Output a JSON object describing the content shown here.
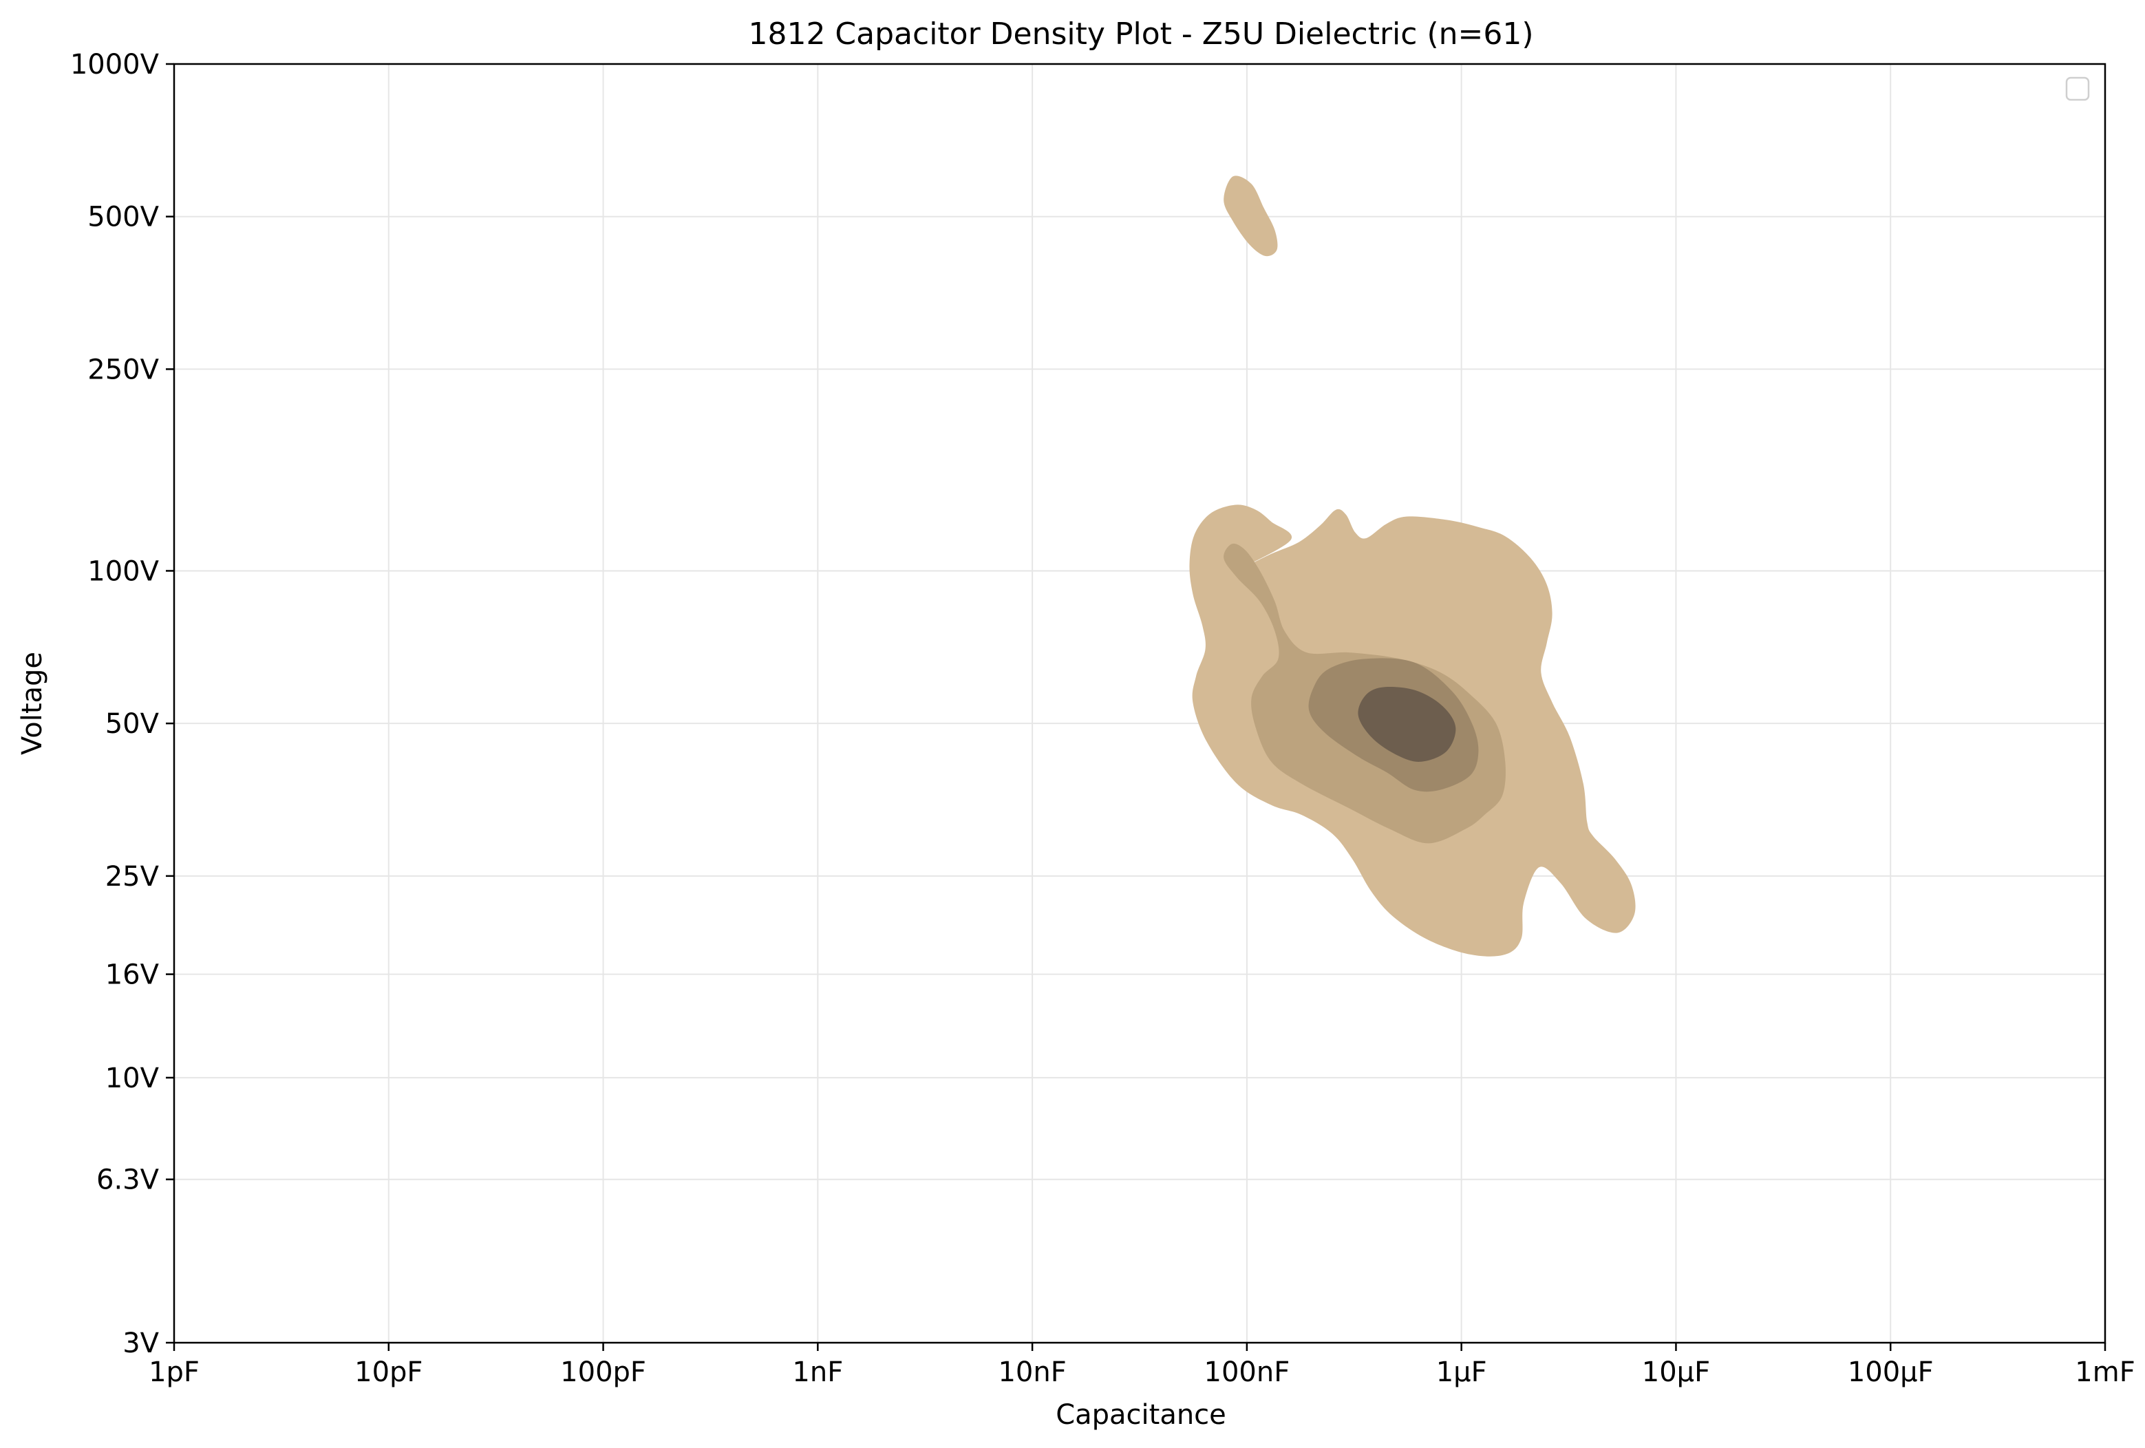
{
  "chart_data": {
    "type": "density",
    "title": "1812 Capacitor Density Plot - Z5U Dielectric (n=61)",
    "xlabel": "Capacitance",
    "ylabel": "Voltage",
    "x_scale": "log",
    "y_scale": "log",
    "x_unit": "F",
    "y_unit": "V",
    "xlim": [
      1e-12,
      0.001
    ],
    "ylim": [
      3,
      1000
    ],
    "x_ticks": [
      {
        "value": 1e-12,
        "label": "1pF"
      },
      {
        "value": 1e-11,
        "label": "10pF"
      },
      {
        "value": 1e-10,
        "label": "100pF"
      },
      {
        "value": 1e-09,
        "label": "1nF"
      },
      {
        "value": 1e-08,
        "label": "10nF"
      },
      {
        "value": 1e-07,
        "label": "100nF"
      },
      {
        "value": 1e-06,
        "label": "1µF"
      },
      {
        "value": 1e-05,
        "label": "10µF"
      },
      {
        "value": 0.0001,
        "label": "100µF"
      },
      {
        "value": 0.001,
        "label": "1mF"
      }
    ],
    "y_ticks": [
      {
        "value": 3,
        "label": "3V"
      },
      {
        "value": 6.3,
        "label": "6.3V"
      },
      {
        "value": 10,
        "label": "10V"
      },
      {
        "value": 16,
        "label": "16V"
      },
      {
        "value": 25,
        "label": "25V"
      },
      {
        "value": 50,
        "label": "50V"
      },
      {
        "value": 100,
        "label": "100V"
      },
      {
        "value": 250,
        "label": "250V"
      },
      {
        "value": 500,
        "label": "500V"
      },
      {
        "value": 1000,
        "label": "1000V"
      }
    ],
    "grid": true,
    "legend": {
      "position": "upper-right",
      "entries": []
    },
    "density_levels": [
      {
        "level": 1,
        "color": "#d4ba95",
        "regions": [
          [
            [
              8.9e-08,
              100
            ],
            [
              1.3e-07,
              108
            ],
            [
              1.75e-07,
              114
            ],
            [
              2.2e-07,
              123
            ],
            [
              2.6e-07,
              132
            ],
            [
              2.9e-07,
              129
            ],
            [
              3.2e-07,
              119
            ],
            [
              3.6e-07,
              116
            ],
            [
              4.5e-07,
              124
            ],
            [
              5.6e-07,
              128
            ],
            [
              8.6e-07,
              126
            ],
            [
              1.2e-06,
              122
            ],
            [
              1.6e-06,
              117
            ],
            [
              2.1e-06,
              106
            ],
            [
              2.5e-06,
              94
            ],
            [
              2.65e-06,
              82
            ],
            [
              2.5e-06,
              72
            ],
            [
              2.35e-06,
              63
            ],
            [
              2.65e-06,
              55
            ],
            [
              3.2e-06,
              47
            ],
            [
              3.7e-06,
              38
            ],
            [
              3.85e-06,
              32
            ],
            [
              4.1e-06,
              30
            ],
            [
              5.2e-06,
              27
            ],
            [
              6.2e-06,
              24
            ],
            [
              6.4e-06,
              21
            ],
            [
              5.3e-06,
              19.3
            ],
            [
              3.8e-06,
              20.6
            ],
            [
              2.9e-06,
              24.2
            ],
            [
              2.3e-06,
              26
            ],
            [
              1.95e-06,
              22.1
            ],
            [
              1.9e-06,
              18.8
            ],
            [
              1.6e-06,
              17.5
            ],
            [
              1.1e-06,
              17.5
            ],
            [
              7e-07,
              18.7
            ],
            [
              4.8e-07,
              20.8
            ],
            [
              3.8e-07,
              23.3
            ],
            [
              3.1e-07,
              27
            ],
            [
              2.5e-07,
              30.3
            ],
            [
              1.8e-07,
              33
            ],
            [
              1.3e-07,
              34.5
            ],
            [
              9e-08,
              38
            ],
            [
              6.5e-08,
              46
            ],
            [
              5.6e-08,
              55
            ],
            [
              5.8e-08,
              62
            ],
            [
              6.4e-08,
              70
            ],
            [
              6.2e-08,
              78
            ],
            [
              5.6e-08,
              90
            ],
            [
              5.4e-08,
              103
            ],
            [
              5.7e-08,
              118
            ],
            [
              6.8e-08,
              130
            ],
            [
              8.9e-08,
              135
            ],
            [
              1.1e-07,
              132
            ],
            [
              1.3e-07,
              125
            ],
            [
              1.6e-07,
              115
            ],
            [
              8.9e-08,
              100
            ]
          ]
        ]
      },
      {
        "level": 1,
        "color": "#d4ba95",
        "regions": [
          [
            [
              8.6e-08,
              600
            ],
            [
              1.05e-07,
              580
            ],
            [
              1.2e-07,
              520
            ],
            [
              1.35e-07,
              470
            ],
            [
              1.38e-07,
              430
            ],
            [
              1.22e-07,
              418
            ],
            [
              1.03e-07,
              440
            ],
            [
              8.6e-08,
              490
            ],
            [
              7.8e-08,
              540
            ],
            [
              8.6e-08,
              600
            ]
          ]
        ]
      },
      {
        "level": 2,
        "color": "#bca37e",
        "regions": [
          [
            [
              8.5e-08,
              113
            ],
            [
              9.8e-08,
              110
            ],
            [
              1.15e-07,
              100
            ],
            [
              1.35e-07,
              87
            ],
            [
              1.5e-07,
              76
            ],
            [
              1.9e-07,
              69
            ],
            [
              3e-07,
              69
            ],
            [
              5.2e-07,
              67
            ],
            [
              8e-07,
              63
            ],
            [
              1.1e-06,
              57
            ],
            [
              1.45e-06,
              50
            ],
            [
              1.6e-06,
              42
            ],
            [
              1.55e-06,
              36
            ],
            [
              1.28e-06,
              33
            ],
            [
              1.05e-06,
              31
            ],
            [
              7e-07,
              29
            ],
            [
              4.6e-07,
              31
            ],
            [
              3e-07,
              34
            ],
            [
              1.8e-07,
              38
            ],
            [
              1.3e-07,
              42
            ],
            [
              1.1e-07,
              49
            ],
            [
              1.05e-07,
              56
            ],
            [
              1.18e-07,
              62
            ],
            [
              1.4e-07,
              67
            ],
            [
              1.35e-07,
              76
            ],
            [
              1.15e-07,
              87
            ],
            [
              9e-08,
              97
            ],
            [
              7.8e-08,
              106
            ],
            [
              8.5e-08,
              113
            ]
          ]
        ]
      },
      {
        "level": 3,
        "color": "#9e8869",
        "regions": [
          [
            [
              2.4e-07,
              64
            ],
            [
              3.5e-07,
              67
            ],
            [
              6e-07,
              66
            ],
            [
              9e-07,
              58
            ],
            [
              1.12e-06,
              50
            ],
            [
              1.2e-06,
              44
            ],
            [
              1.1e-06,
              39.5
            ],
            [
              8e-07,
              37
            ],
            [
              6e-07,
              37
            ],
            [
              4.5e-07,
              40
            ],
            [
              3.3e-07,
              43
            ],
            [
              2.3e-07,
              48
            ],
            [
              1.95e-07,
              53
            ],
            [
              2.05e-07,
              59
            ],
            [
              2.4e-07,
              64
            ]
          ]
        ]
      },
      {
        "level": 4,
        "color": "#6d5e4e",
        "regions": [
          [
            [
              4.4e-07,
              59
            ],
            [
              6.2e-07,
              58
            ],
            [
              8.2e-07,
              54
            ],
            [
              9.4e-07,
              49
            ],
            [
              8.5e-07,
              44
            ],
            [
              6.4e-07,
              42
            ],
            [
              4.9e-07,
              43.5
            ],
            [
              3.8e-07,
              47
            ],
            [
              3.3e-07,
              52
            ],
            [
              3.6e-07,
              57
            ],
            [
              4.4e-07,
              59
            ]
          ]
        ]
      }
    ]
  }
}
